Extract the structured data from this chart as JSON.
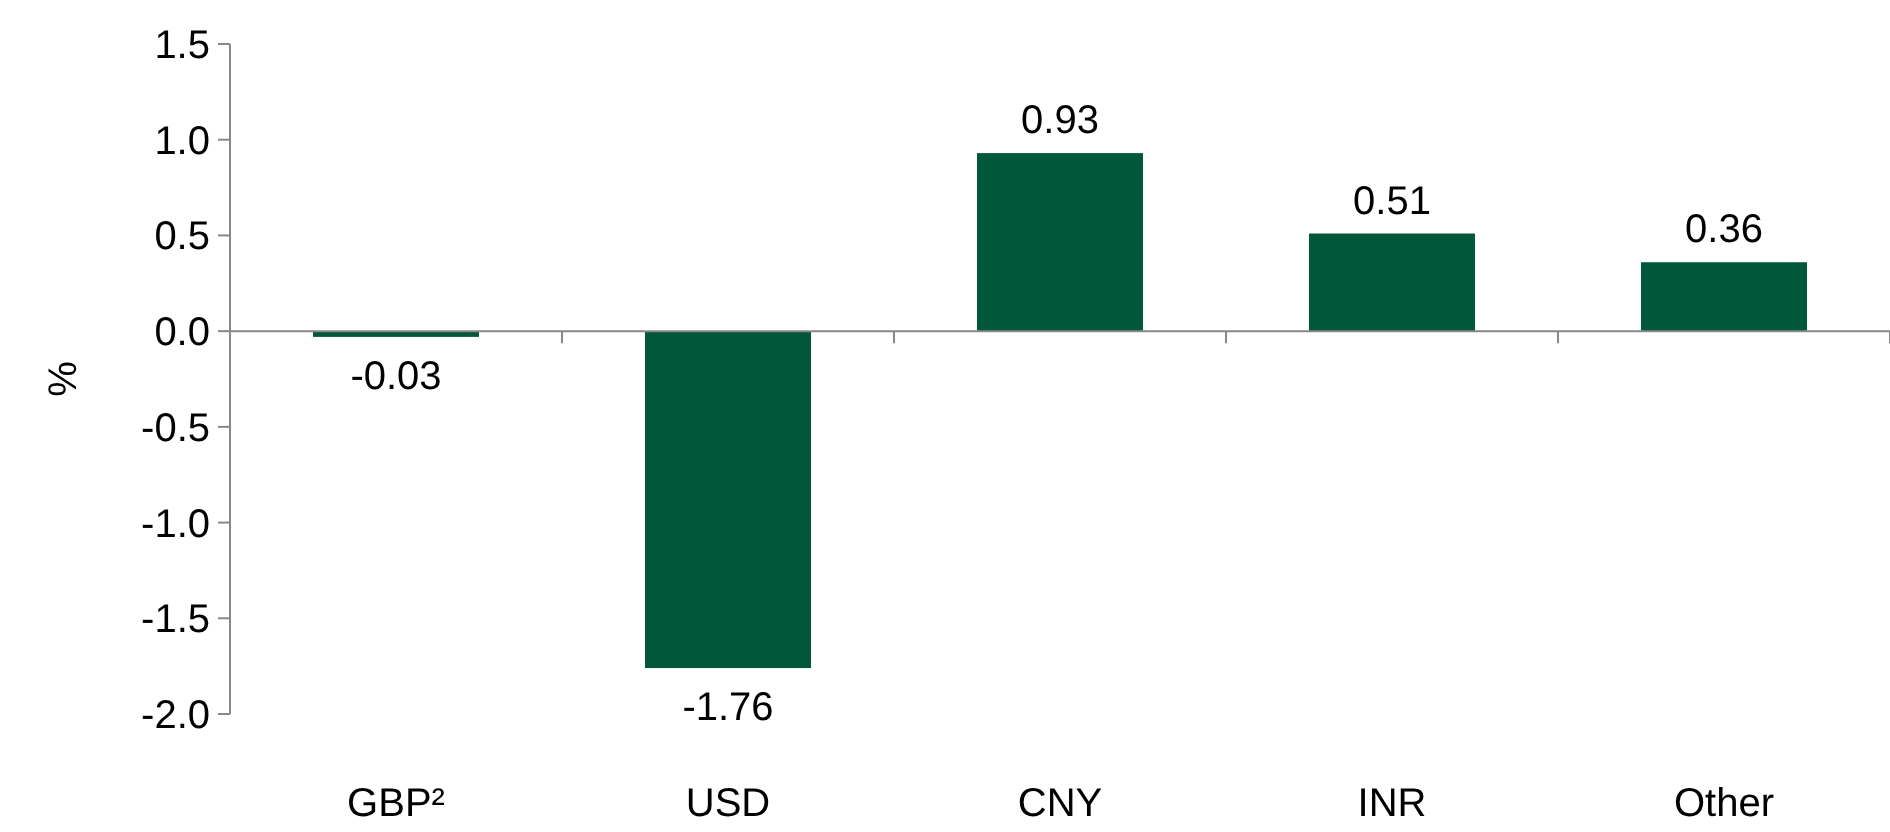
{
  "chart_data": {
    "type": "bar",
    "ylabel": "%",
    "categories": [
      "GBP²",
      "USD",
      "CNY",
      "INR",
      "Other"
    ],
    "values": [
      -0.03,
      -1.76,
      0.93,
      0.51,
      0.36
    ],
    "color": "#00573a",
    "ylim": [
      -2.0,
      1.5
    ],
    "yticks": [
      {
        "value": -2,
        "label": "-2.0"
      },
      {
        "value": -1.5,
        "label": "-1.5"
      },
      {
        "value": -1,
        "label": "-1.0"
      },
      {
        "value": -0.5,
        "label": "-0.5"
      },
      {
        "value": 0,
        "label": "0.0"
      },
      {
        "value": 0.5,
        "label": "0.5"
      },
      {
        "value": 1,
        "label": "1.0"
      },
      {
        "value": 1.5,
        "label": "1.5"
      }
    ],
    "data_labels": true
  }
}
